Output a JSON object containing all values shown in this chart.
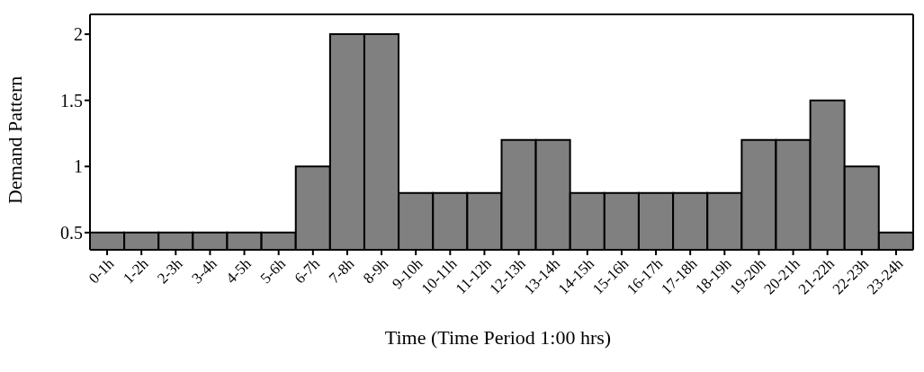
{
  "chart_data": {
    "type": "bar",
    "xlabel": "Time (Time Period 1:00 hrs)",
    "ylabel": "Demand Pattern",
    "categories": [
      "0-1h",
      "1-2h",
      "2-3h",
      "3-4h",
      "4-5h",
      "5-6h",
      "6-7h",
      "7-8h",
      "8-9h",
      "9-10h",
      "10-11h",
      "11-12h",
      "12-13h",
      "13-14h",
      "14-15h",
      "15-16h",
      "16-17h",
      "17-18h",
      "18-19h",
      "19-20h",
      "20-21h",
      "21-22h",
      "22-23h",
      "23-24h"
    ],
    "values": [
      0.5,
      0.5,
      0.5,
      0.5,
      0.5,
      0.5,
      1,
      2,
      2,
      0.8,
      0.8,
      0.8,
      1.2,
      1.2,
      0.8,
      0.8,
      0.8,
      0.8,
      0.8,
      1.2,
      1.2,
      1.5,
      1,
      0.5
    ],
    "color": "#808080",
    "ylim": [
      0.37,
      2.15
    ],
    "yticks": [
      0.5,
      1,
      1.5,
      2
    ],
    "grid": false,
    "legend": false
  }
}
